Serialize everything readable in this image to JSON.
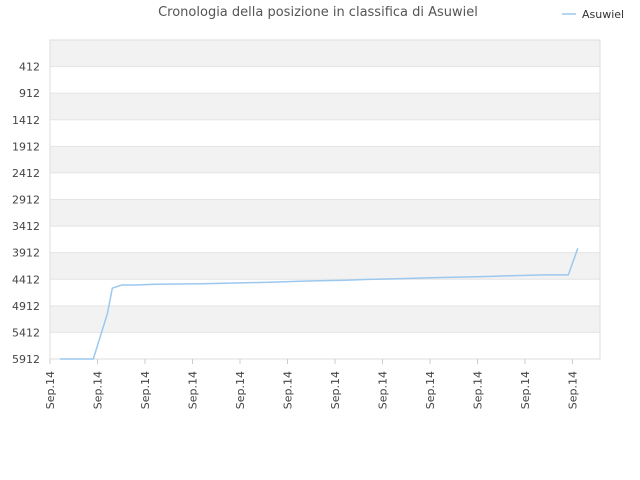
{
  "chart_data": {
    "type": "line",
    "title": "Cronologia della posizione in classifica di Asuwiel",
    "xlabel": "",
    "ylabel": "",
    "y_inverted": true,
    "ylim": [
      5912,
      0
    ],
    "y_ticks": [
      412,
      912,
      1412,
      1912,
      2412,
      2912,
      3412,
      3912,
      4412,
      4912,
      5412,
      5912
    ],
    "x_tick_labels": [
      "Sep.14",
      "Sep.14",
      "Sep.14",
      "Sep.14",
      "Sep.14",
      "Sep.14",
      "Sep.14",
      "Sep.14",
      "Sep.14",
      "Sep.14",
      "Sep.14",
      "Sep.14"
    ],
    "grid": true,
    "legend": {
      "position": "top-right"
    },
    "colors": {
      "series": "#9cc8ee",
      "band": "#f2f2f2",
      "grid": "#e4e4e4"
    },
    "series": [
      {
        "name": "Asuwiel",
        "x": [
          0.0,
          0.7,
          1.0,
          1.1,
          1.3,
          1.6,
          2.0,
          3.0,
          3.8,
          4.5,
          5.2,
          6.0,
          6.5,
          7.2,
          7.8,
          8.3,
          9.0,
          9.5,
          10.2,
          10.7,
          10.9
        ],
        "values": [
          5912,
          5912,
          5050,
          4580,
          4520,
          4520,
          4505,
          4495,
          4480,
          4465,
          4445,
          4430,
          4415,
          4400,
          4385,
          4375,
          4360,
          4345,
          4330,
          4330,
          3830
        ]
      }
    ]
  }
}
